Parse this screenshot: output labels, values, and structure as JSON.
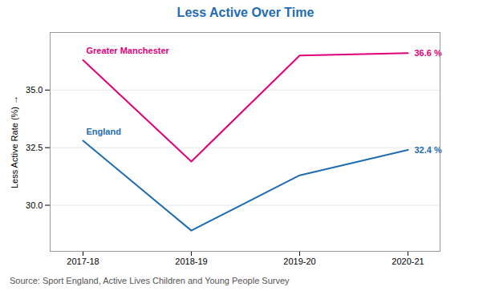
{
  "chart_data": {
    "type": "line",
    "title": "Less Active Over Time",
    "title_color": "#1f6cb0",
    "y_label": "Less Active Rate (%)",
    "categories": [
      "2017-18",
      "2018-19",
      "2019-20",
      "2020-21"
    ],
    "series": [
      {
        "name": "Greater Manchester",
        "color": "#e0007a",
        "values": [
          36.3,
          31.9,
          36.5,
          36.6
        ],
        "end_label": "36.6 %"
      },
      {
        "name": "England",
        "color": "#1f6cb0",
        "values": [
          32.8,
          28.9,
          31.3,
          32.4
        ],
        "end_label": "32.4 %"
      }
    ],
    "ylim": [
      28.0,
      37.5
    ],
    "yticks": [
      {
        "value": 30.0,
        "label": "30.0"
      },
      32.5,
      {
        "value": 35.0,
        "label": "35.0"
      }
    ],
    "grid": true,
    "caption": "Source: Sport England, Active Lives Children and Young People Survey"
  }
}
